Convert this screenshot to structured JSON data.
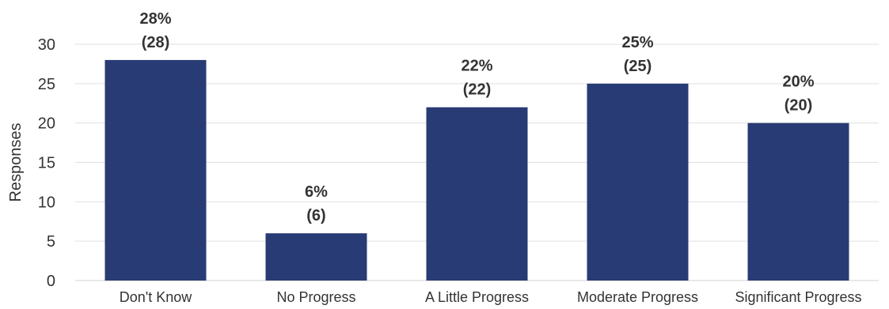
{
  "chart_data": {
    "type": "bar",
    "categories": [
      "Don't Know",
      "No Progress",
      "A Little Progress",
      "Moderate Progress",
      "Significant Progress"
    ],
    "values": [
      28,
      6,
      22,
      25,
      20
    ],
    "percent_labels": [
      "28%",
      "6%",
      "22%",
      "25%",
      "20%"
    ],
    "count_labels": [
      "(28)",
      "(6)",
      "(22)",
      "(25)",
      "(20)"
    ],
    "ylabel": "Responses",
    "ylim": [
      0,
      30
    ],
    "yticks": [
      0,
      5,
      10,
      15,
      20,
      25,
      30
    ],
    "grid": true,
    "legend": "none"
  },
  "colors": {
    "bar": "#283b74",
    "grid": "#e0e0e0",
    "baseline": "#d0d0d0"
  }
}
